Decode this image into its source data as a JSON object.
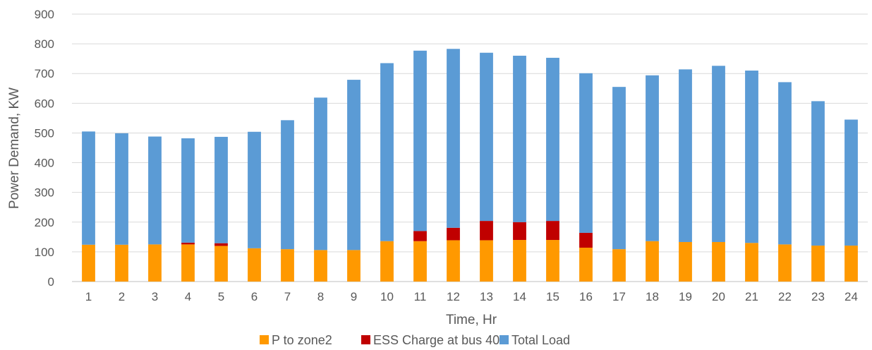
{
  "chart_data": {
    "type": "bar",
    "stacked": true,
    "title": "",
    "xlabel": "Time, Hr",
    "ylabel": "Power Demand, KW",
    "ylim": [
      0,
      900
    ],
    "yticks": [
      0,
      100,
      200,
      300,
      400,
      500,
      600,
      700,
      800,
      900
    ],
    "grid": true,
    "legend_position": "bottom",
    "categories": [
      "1",
      "2",
      "3",
      "4",
      "5",
      "6",
      "7",
      "8",
      "9",
      "10",
      "11",
      "12",
      "13",
      "14",
      "15",
      "16",
      "17",
      "18",
      "19",
      "20",
      "21",
      "22",
      "23",
      "24"
    ],
    "series": [
      {
        "name": "P to zone2",
        "color": "#FF9900",
        "values": [
          124,
          124,
          125,
          125,
          120,
          112,
          109,
          106,
          106,
          136,
          136,
          139,
          139,
          140,
          140,
          114,
          109,
          136,
          133,
          133,
          130,
          125,
          121,
          121
        ]
      },
      {
        "name": "ESS Charge at bus 40",
        "color": "#C00000",
        "values": [
          0,
          0,
          0,
          6,
          9,
          0,
          0,
          0,
          0,
          0,
          34,
          42,
          65,
          60,
          64,
          50,
          0,
          0,
          0,
          0,
          0,
          0,
          0,
          0
        ]
      },
      {
        "name": "Total Load",
        "color": "#5B9BD5",
        "values": [
          381,
          375,
          363,
          351,
          358,
          392,
          434,
          513,
          573,
          599,
          607,
          602,
          566,
          560,
          549,
          537,
          546,
          558,
          581,
          593,
          580,
          546,
          486,
          424
        ]
      }
    ]
  }
}
